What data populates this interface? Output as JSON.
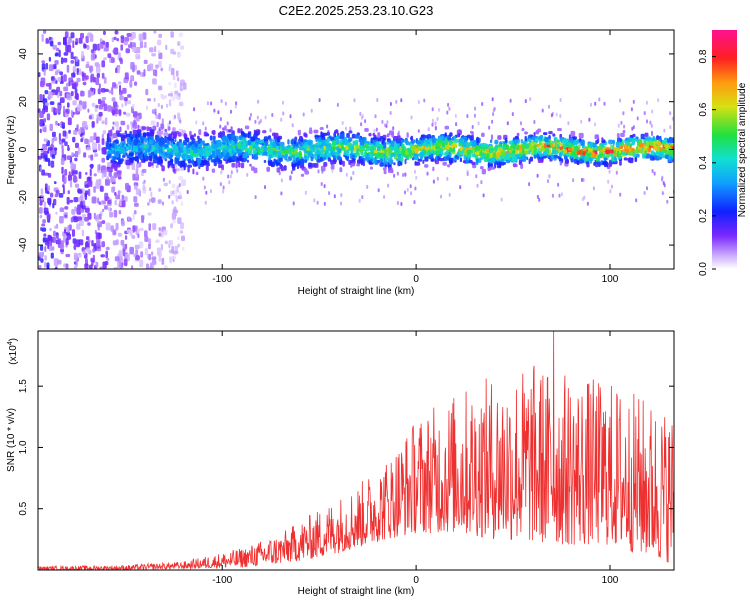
{
  "chart_data": [
    {
      "type": "heatmap",
      "title": "C2E2.2025.253.23.10.G23",
      "xlabel": "Height of straight line (km)",
      "ylabel": "Frequency (Hz)",
      "xlim": [
        -195,
        133
      ],
      "ylim": [
        -50,
        50
      ],
      "xticks": [
        -100,
        0,
        100
      ],
      "yticks": [
        -40,
        -20,
        0,
        20,
        40
      ],
      "colorbar": {
        "label": "Normalized spectral amplitude",
        "range": [
          0,
          0.9
        ],
        "ticks": [
          0.0,
          0.2,
          0.4,
          0.6,
          0.8
        ]
      },
      "ridge": {
        "center_frequency_hz": 0,
        "half_width_hz": 6,
        "start_height_km": -160,
        "end_height_km": 133
      }
    },
    {
      "type": "line",
      "xlabel": "Height of straight line (km)",
      "ylabel": "SNR (10 * v/v)",
      "y_multiplier_label": "(x10",
      "y_multiplier_exponent": "4",
      "xlim": [
        -195,
        133
      ],
      "ylim": [
        0,
        1.95
      ],
      "xticks": [
        -100,
        0,
        100
      ],
      "yticks": [
        0.5,
        1.0,
        1.5
      ],
      "color": "#ef3030",
      "envelope": {
        "x": [
          -195,
          -150,
          -120,
          -90,
          -70,
          -50,
          -30,
          -15,
          0,
          20,
          40,
          60,
          80,
          100,
          120,
          133
        ],
        "max": [
          0.03,
          0.04,
          0.07,
          0.18,
          0.3,
          0.5,
          0.7,
          0.92,
          1.25,
          1.45,
          1.6,
          1.7,
          1.6,
          1.55,
          1.4,
          1.3
        ],
        "min": [
          0.0,
          0.0,
          0.01,
          0.02,
          0.05,
          0.1,
          0.18,
          0.25,
          0.3,
          0.3,
          0.25,
          0.22,
          0.2,
          0.2,
          0.1,
          0.05
        ]
      },
      "peak": {
        "x": 71,
        "y": 1.95
      }
    }
  ]
}
